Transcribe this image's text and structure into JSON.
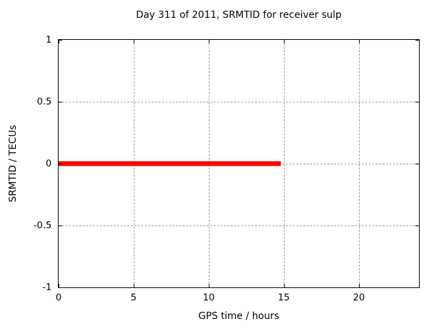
{
  "window": {
    "background": "#ffffff",
    "foreground": "#000000"
  },
  "chart_data": {
    "type": "line",
    "title": "Day 311 of 2011, SRMTID for receiver sulp",
    "xlabel": "GPS time / hours",
    "ylabel": "SRMTID / TECUs",
    "xlim": [
      0,
      24
    ],
    "ylim": [
      -1,
      1
    ],
    "xticks": [
      {
        "v": 0,
        "label": "0"
      },
      {
        "v": 5,
        "label": "5"
      },
      {
        "v": 10,
        "label": "10"
      },
      {
        "v": 15,
        "label": "15"
      },
      {
        "v": 20,
        "label": "20"
      }
    ],
    "yticks": [
      {
        "v": -1,
        "label": "-1"
      },
      {
        "v": -0.5,
        "label": "-0.5"
      },
      {
        "v": 0,
        "label": "0"
      },
      {
        "v": 0.5,
        "label": "0.5"
      },
      {
        "v": 1,
        "label": "1"
      }
    ],
    "grid": true,
    "grid_color": "#9c9c9c",
    "axis_color": "#000000",
    "legend": "none",
    "series": [
      {
        "name": "SRMTID",
        "color": "#ff0000",
        "linewidth": 7,
        "x": [
          0,
          14.8
        ],
        "y": [
          0,
          0
        ]
      }
    ]
  }
}
